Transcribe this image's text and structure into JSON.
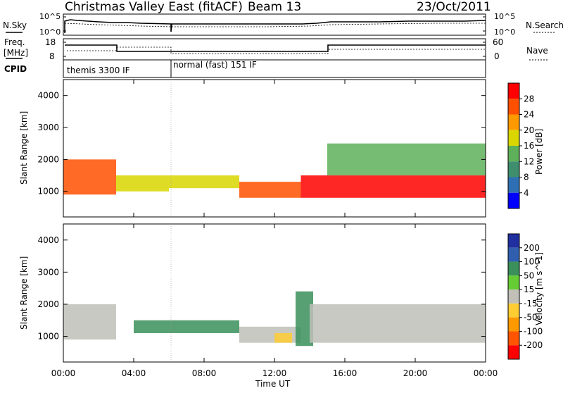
{
  "header": {
    "station": "Christmas Valley East (fitACF)",
    "beam": "Beam 13",
    "date": "23/Oct/2011"
  },
  "noise_panel": {
    "left_label": "N.Sky",
    "right_label": "N.Search",
    "tick_top": "10^5",
    "tick_bottom": "10^0"
  },
  "freq_panel": {
    "left_label_1": "Freq.",
    "left_label_2": "[MHz]",
    "right_label": "Nave",
    "left_ticks": [
      "18",
      "8"
    ],
    "right_ticks": [
      "60",
      "0"
    ]
  },
  "cpid_panel": {
    "label": "CPID",
    "programs": [
      {
        "name": "themis 3300 IF",
        "start_hour": 0,
        "end_hour": 6.1
      },
      {
        "name": "normal (fast) 151 IF",
        "start_hour": 6.1,
        "end_hour": 24
      }
    ]
  },
  "colors": {
    "power_scale": [
      "#0000ff",
      "#2e6fb4",
      "#3f8f6e",
      "#5fb05a",
      "#d9d600",
      "#ff9900",
      "#ff5000",
      "#ff0000"
    ],
    "velocity_scale": [
      "#2030a0",
      "#305fb0",
      "#3a8f5a",
      "#66cc33",
      "#c0c0b8",
      "#ffcc33",
      "#ff9900",
      "#ff5500",
      "#ff0000"
    ],
    "ground_scatter": "#c0c0b8"
  },
  "chart_data": [
    {
      "type": "heatmap",
      "title": "",
      "xlabel": "",
      "ylabel": "Slant Range [km]",
      "xlim": [
        0,
        24
      ],
      "ylim": [
        200,
        4500
      ],
      "xticks": [
        "00:00",
        "04:00",
        "08:00",
        "12:00",
        "16:00",
        "20:00",
        "00:00"
      ],
      "yticks": [
        "1000",
        "2000",
        "3000",
        "4000"
      ],
      "colorbar": {
        "label": "Power [dB]",
        "ticks": [
          "28",
          "24",
          "20",
          "16",
          "12",
          "8",
          "4"
        ],
        "range": [
          0,
          32
        ]
      },
      "echo_regions": [
        {
          "hours": [
            0,
            3
          ],
          "range_km": [
            900,
            2000
          ],
          "power_db": 24
        },
        {
          "hours": [
            3,
            6
          ],
          "range_km": [
            1000,
            1500
          ],
          "power_db": 16
        },
        {
          "hours": [
            6,
            10
          ],
          "range_km": [
            1100,
            1500
          ],
          "power_db": 16
        },
        {
          "hours": [
            10,
            13.5
          ],
          "range_km": [
            800,
            1300
          ],
          "power_db": 26
        },
        {
          "hours": [
            13.5,
            24
          ],
          "range_km": [
            800,
            1500
          ],
          "power_db": 28
        },
        {
          "hours": [
            15,
            24
          ],
          "range_km": [
            1500,
            2500
          ],
          "power_db": 12
        }
      ]
    },
    {
      "type": "heatmap",
      "title": "",
      "xlabel": "Time UT",
      "ylabel": "Slant Range [km]",
      "xlim": [
        0,
        24
      ],
      "ylim": [
        200,
        4500
      ],
      "xticks": [
        "00:00",
        "04:00",
        "08:00",
        "12:00",
        "16:00",
        "20:00",
        "00:00"
      ],
      "yticks": [
        "1000",
        "2000",
        "3000",
        "4000"
      ],
      "colorbar": {
        "label": "Velocity [m s^-1]",
        "ticks": [
          "200",
          "100",
          "50",
          "15",
          "-15",
          "-50",
          "-100",
          "-200"
        ],
        "range": [
          -250,
          250
        ]
      },
      "echo_regions": [
        {
          "hours": [
            0,
            3
          ],
          "range_km": [
            900,
            2000
          ],
          "velocity_ms": 0
        },
        {
          "hours": [
            4,
            10
          ],
          "range_km": [
            1100,
            1500
          ],
          "velocity_ms": 50
        },
        {
          "hours": [
            10,
            13.5
          ],
          "range_km": [
            800,
            1300
          ],
          "velocity_ms": 0
        },
        {
          "hours": [
            12,
            13
          ],
          "range_km": [
            800,
            1100
          ],
          "velocity_ms": -50
        },
        {
          "hours": [
            13.2,
            14.2
          ],
          "range_km": [
            700,
            2400
          ],
          "velocity_ms": 50
        },
        {
          "hours": [
            14,
            24
          ],
          "range_km": [
            800,
            2000
          ],
          "velocity_ms": 0
        }
      ]
    }
  ]
}
